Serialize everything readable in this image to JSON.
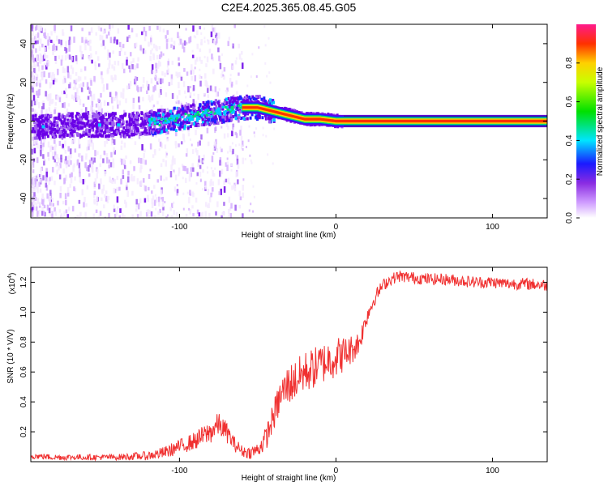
{
  "chart_data": [
    {
      "type": "heatmap",
      "title": "C2E4.2025.365.08.45.G05",
      "xlabel": "Height of straight line (km)",
      "ylabel": "Frequency (Hz)",
      "xlim": [
        -195,
        135
      ],
      "ylim": [
        -50,
        50
      ],
      "xticks": [
        -100,
        0,
        100
      ],
      "yticks": [
        -40,
        -20,
        0,
        20,
        40
      ],
      "colorbar": {
        "label": "Normalized spectral amplitude",
        "range": [
          0,
          1
        ],
        "ticks": [
          0.0,
          0.2,
          0.4,
          0.6,
          0.8
        ]
      },
      "ridge": [
        {
          "x": -190,
          "f": -3
        },
        {
          "x": -170,
          "f": -2
        },
        {
          "x": -150,
          "f": -2
        },
        {
          "x": -130,
          "f": -2
        },
        {
          "x": -110,
          "f": 0
        },
        {
          "x": -90,
          "f": 3
        },
        {
          "x": -75,
          "f": 5
        },
        {
          "x": -60,
          "f": 7
        },
        {
          "x": -50,
          "f": 7
        },
        {
          "x": -40,
          "f": 5
        },
        {
          "x": -30,
          "f": 3
        },
        {
          "x": -20,
          "f": 1
        },
        {
          "x": -10,
          "f": 1
        },
        {
          "x": 0,
          "f": 0
        },
        {
          "x": 5,
          "f": 0
        },
        {
          "x": 135,
          "f": 0
        }
      ]
    },
    {
      "type": "line",
      "xlabel": "Height of straight line (km)",
      "ylabel": "SNR (10 * V/V)",
      "y_multiplier": "(x10",
      "y_multiplier_exp": "4",
      "y_multiplier_close": ")",
      "xlim": [
        -195,
        135
      ],
      "ylim": [
        0,
        1.3
      ],
      "xticks": [
        -100,
        0,
        100
      ],
      "yticks": [
        0.2,
        0.4,
        0.6,
        0.8,
        1.0,
        1.2
      ],
      "color": "#f03030",
      "series": [
        {
          "name": "SNR",
          "x": [
            -195,
            -180,
            -160,
            -140,
            -120,
            -110,
            -100,
            -90,
            -80,
            -75,
            -70,
            -65,
            -60,
            -55,
            -50,
            -45,
            -40,
            -35,
            -30,
            -25,
            -20,
            -15,
            -10,
            -5,
            0,
            5,
            10,
            15,
            20,
            25,
            30,
            35,
            40,
            50,
            60,
            70,
            80,
            90,
            100,
            110,
            120,
            135
          ],
          "y": [
            0.04,
            0.03,
            0.03,
            0.03,
            0.04,
            0.06,
            0.1,
            0.14,
            0.2,
            0.25,
            0.2,
            0.12,
            0.07,
            0.06,
            0.08,
            0.15,
            0.3,
            0.45,
            0.52,
            0.55,
            0.6,
            0.62,
            0.65,
            0.68,
            0.7,
            0.72,
            0.75,
            0.8,
            0.98,
            1.1,
            1.18,
            1.22,
            1.24,
            1.23,
            1.22,
            1.22,
            1.21,
            1.2,
            1.2,
            1.19,
            1.19,
            1.18
          ],
          "noise": [
            0.02,
            0.02,
            0.02,
            0.02,
            0.03,
            0.04,
            0.05,
            0.06,
            0.08,
            0.08,
            0.07,
            0.05,
            0.04,
            0.04,
            0.05,
            0.08,
            0.1,
            0.12,
            0.14,
            0.14,
            0.14,
            0.14,
            0.14,
            0.14,
            0.14,
            0.12,
            0.1,
            0.08,
            0.06,
            0.05,
            0.04,
            0.04,
            0.04,
            0.04,
            0.04,
            0.04,
            0.04,
            0.04,
            0.04,
            0.04,
            0.04,
            0.04
          ]
        }
      ]
    }
  ]
}
